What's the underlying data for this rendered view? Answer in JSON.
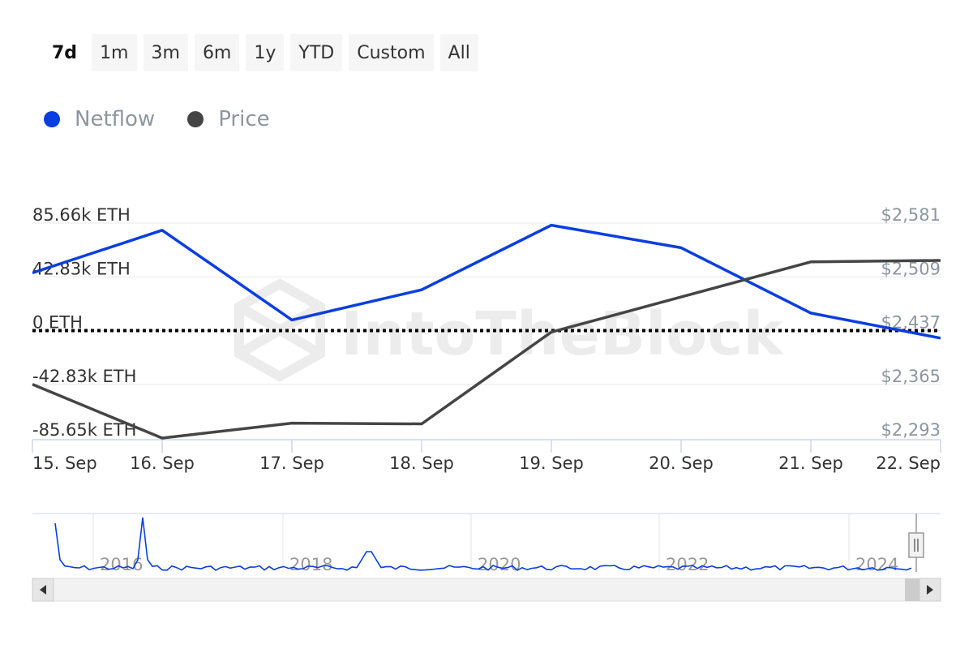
{
  "range_selector": {
    "buttons": [
      "7d",
      "1m",
      "3m",
      "6m",
      "1y",
      "YTD",
      "Custom",
      "All"
    ],
    "active": "7d"
  },
  "legend": [
    {
      "label": "Netflow",
      "color": "#0a3ee0"
    },
    {
      "label": "Price",
      "color": "#454545"
    }
  ],
  "watermark": "IntoTheBlock",
  "chart_data": {
    "type": "line",
    "categories": [
      "15. Sep",
      "16. Sep",
      "17. Sep",
      "18. Sep",
      "19. Sep",
      "20. Sep",
      "21. Sep",
      "22. Sep"
    ],
    "series": [
      {
        "name": "Netflow",
        "axis": "left",
        "color": "#0a3ee0",
        "values": [
          46000,
          80000,
          8500,
          32500,
          84000,
          66000,
          14000,
          -6000
        ]
      },
      {
        "name": "Price",
        "axis": "right",
        "color": "#454545",
        "values": [
          2365,
          2293,
          2313,
          2312,
          2435,
          2482,
          2529,
          2531
        ]
      }
    ],
    "y_left": {
      "ticks": [
        "85.66k ETH",
        "42.83k ETH",
        "0 ETH",
        "-42.83k ETH",
        "-85.65k ETH"
      ],
      "range": [
        -85650,
        85660
      ]
    },
    "y_right": {
      "ticks": [
        "$2,581",
        "$2,509",
        "$2,437",
        "$2,365",
        "$2,293"
      ],
      "range": [
        2293,
        2581
      ]
    },
    "zero_line": "dotted",
    "legend_position": "top-left",
    "navigator": {
      "year_labels": [
        "2016",
        "2018",
        "2020",
        "2022",
        "2024"
      ]
    }
  }
}
